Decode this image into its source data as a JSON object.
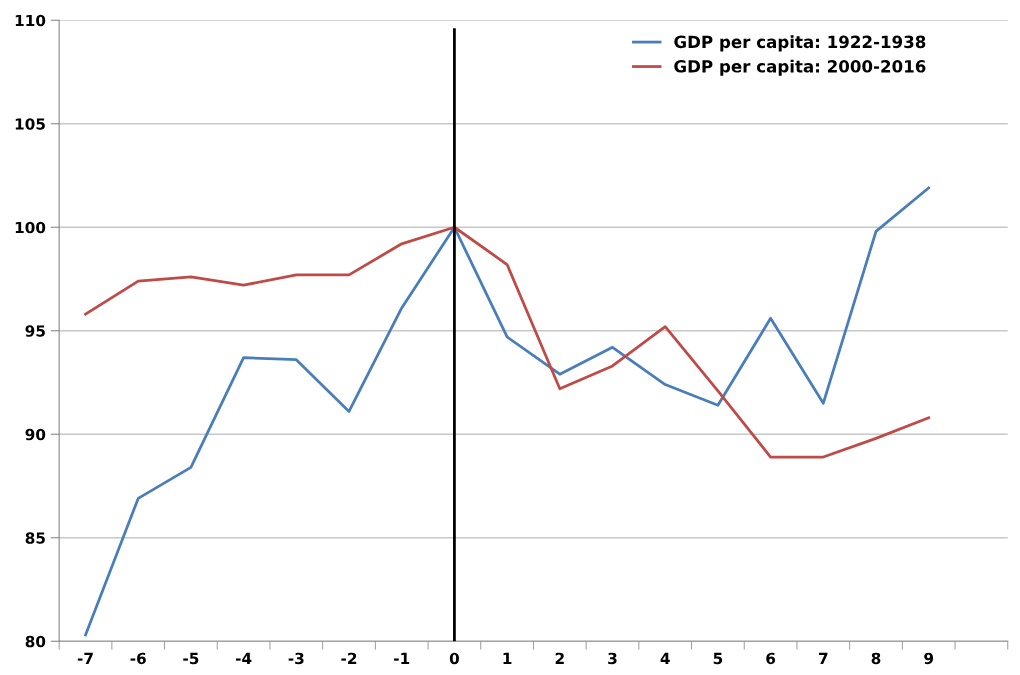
{
  "chart_data": {
    "type": "line",
    "categories": [
      "-7",
      "-6",
      "-5",
      "-4",
      "-3",
      "-2",
      "-1",
      "0",
      "1",
      "2",
      "3",
      "4",
      "5",
      "6",
      "7",
      "8",
      "9",
      null
    ],
    "series": [
      {
        "name": "GDP per capita: 1922-1938",
        "color": "#4a7ebb",
        "values": [
          80.3,
          86.9,
          88.4,
          93.7,
          93.6,
          91.1,
          96.1,
          100,
          94.7,
          92.9,
          94.2,
          92.4,
          91.4,
          95.6,
          91.5,
          99.8,
          101.9,
          null
        ]
      },
      {
        "name": "GDP per capita: 2000-2016",
        "color": "#be4b48",
        "values": [
          95.8,
          97.4,
          97.6,
          97.2,
          97.7,
          97.7,
          99.2,
          100,
          98.2,
          92.2,
          93.3,
          95.2,
          92.1,
          88.9,
          88.9,
          89.8,
          90.8,
          null
        ]
      }
    ],
    "ylim": [
      80,
      110
    ],
    "yticks": [
      80,
      85,
      90,
      95,
      100,
      105,
      110
    ],
    "ref_lines": [
      {
        "axis": "x",
        "value": "0",
        "color": "#000000"
      }
    ],
    "grid": "y",
    "legend": "top right",
    "marker": "none",
    "line_style": "solid"
  }
}
